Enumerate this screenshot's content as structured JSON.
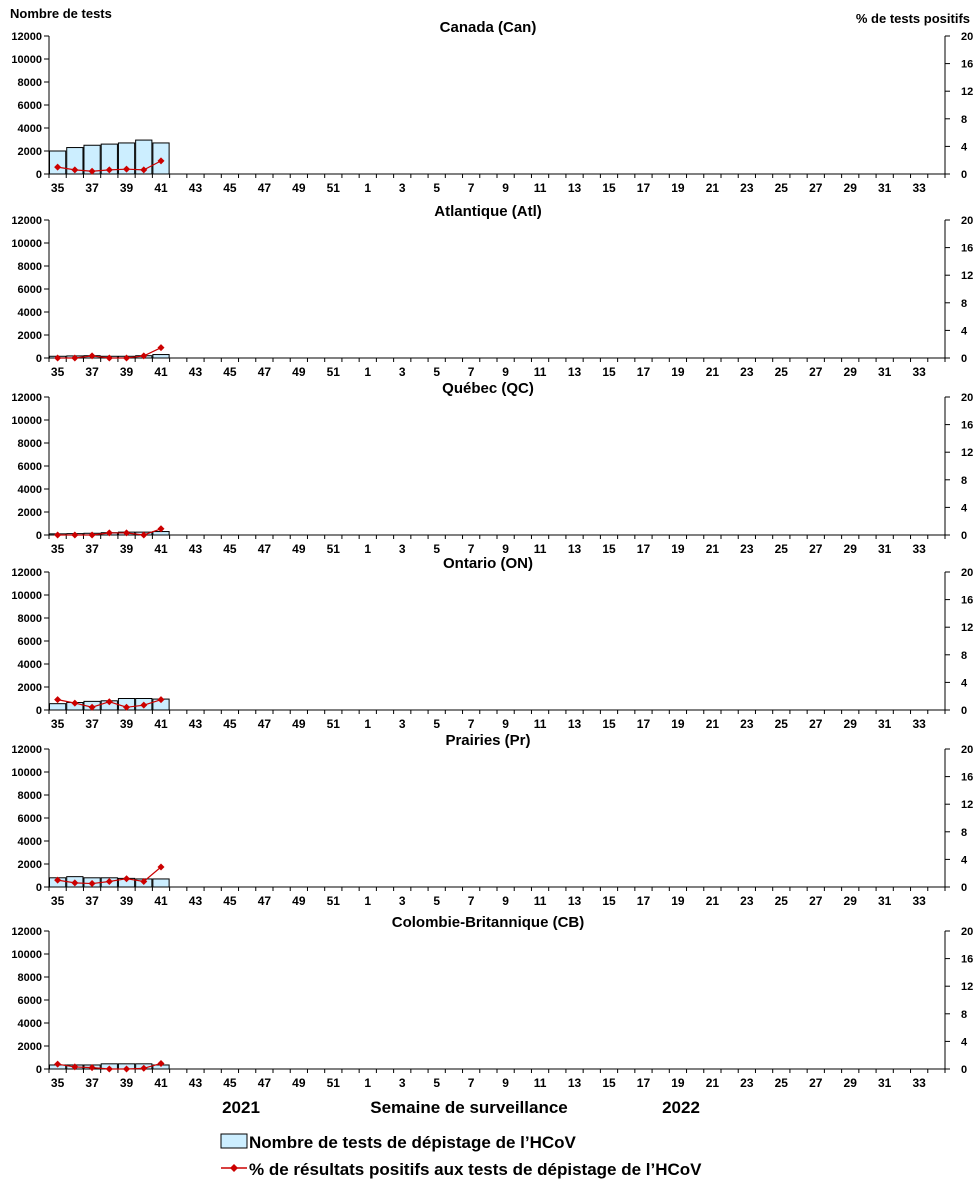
{
  "labels": {
    "left_axis_title": "Nombre de tests",
    "right_axis_title": "% de tests positifs",
    "xlabel": "Semaine de surveillance",
    "year_left": "2021",
    "year_right": "2022"
  },
  "legend": {
    "bar_label": "Nombre de tests de dépistage de l’HCoV",
    "line_label": "% de résultats positifs aux tests de dépistage de l’HCoV"
  },
  "colors": {
    "bar_fill": "#cceeff",
    "bar_stroke": "#000000",
    "line": "#cc0000",
    "axis": "#000000"
  },
  "chart_data": [
    {
      "type": "bar+line",
      "title": "Canada (Can)",
      "weeks": [
        "35",
        "36",
        "37",
        "38",
        "39",
        "40",
        "41",
        "42",
        "43",
        "44",
        "45",
        "46",
        "47",
        "48",
        "49",
        "50",
        "51",
        "52",
        "1",
        "2",
        "3",
        "4",
        "5",
        "6",
        "7",
        "8",
        "9",
        "10",
        "11",
        "12",
        "13",
        "14",
        "15",
        "16",
        "17",
        "18",
        "19",
        "20",
        "21",
        "22",
        "23",
        "24",
        "25",
        "26",
        "27",
        "28",
        "29",
        "30",
        "31",
        "32",
        "33",
        "34"
      ],
      "tick_labels": [
        "35",
        "37",
        "39",
        "41",
        "43",
        "45",
        "47",
        "49",
        "51",
        "1",
        "3",
        "5",
        "7",
        "9",
        "11",
        "13",
        "15",
        "17",
        "19",
        "21",
        "23",
        "25",
        "27",
        "29",
        "31",
        "33"
      ],
      "tests": [
        2000,
        2300,
        2500,
        2600,
        2700,
        2950,
        2700
      ],
      "pct_positive": [
        1.0,
        0.6,
        0.4,
        0.6,
        0.7,
        0.6,
        1.9
      ],
      "ylim_left": [
        0,
        12000
      ],
      "yticks_left": [
        0,
        2000,
        4000,
        6000,
        8000,
        10000,
        12000
      ],
      "ylim_right": [
        0,
        20
      ],
      "yticks_right": [
        0,
        4,
        8,
        12,
        16,
        20
      ]
    },
    {
      "type": "bar+line",
      "title": "Atlantique (Atl)",
      "weeks": [
        "35",
        "36",
        "37",
        "38",
        "39",
        "40",
        "41",
        "42",
        "43",
        "44",
        "45",
        "46",
        "47",
        "48",
        "49",
        "50",
        "51",
        "52",
        "1",
        "2",
        "3",
        "4",
        "5",
        "6",
        "7",
        "8",
        "9",
        "10",
        "11",
        "12",
        "13",
        "14",
        "15",
        "16",
        "17",
        "18",
        "19",
        "20",
        "21",
        "22",
        "23",
        "24",
        "25",
        "26",
        "27",
        "28",
        "29",
        "30",
        "31",
        "32",
        "33",
        "34"
      ],
      "tick_labels": [
        "35",
        "37",
        "39",
        "41",
        "43",
        "45",
        "47",
        "49",
        "51",
        "1",
        "3",
        "5",
        "7",
        "9",
        "11",
        "13",
        "15",
        "17",
        "19",
        "21",
        "23",
        "25",
        "27",
        "29",
        "31",
        "33"
      ],
      "tests": [
        150,
        180,
        200,
        150,
        150,
        200,
        300
      ],
      "pct_positive": [
        0.0,
        0.0,
        0.3,
        0.0,
        0.0,
        0.3,
        1.5
      ],
      "ylim_left": [
        0,
        12000
      ],
      "yticks_left": [
        0,
        2000,
        4000,
        6000,
        8000,
        10000,
        12000
      ],
      "ylim_right": [
        0,
        20
      ],
      "yticks_right": [
        0,
        4,
        8,
        12,
        16,
        20
      ]
    },
    {
      "type": "bar+line",
      "title": "Québec (QC)",
      "weeks": [
        "35",
        "36",
        "37",
        "38",
        "39",
        "40",
        "41",
        "42",
        "43",
        "44",
        "45",
        "46",
        "47",
        "48",
        "49",
        "50",
        "51",
        "52",
        "1",
        "2",
        "3",
        "4",
        "5",
        "6",
        "7",
        "8",
        "9",
        "10",
        "11",
        "12",
        "13",
        "14",
        "15",
        "16",
        "17",
        "18",
        "19",
        "20",
        "21",
        "22",
        "23",
        "24",
        "25",
        "26",
        "27",
        "28",
        "29",
        "30",
        "31",
        "32",
        "33",
        "34"
      ],
      "tick_labels": [
        "35",
        "37",
        "39",
        "41",
        "43",
        "45",
        "47",
        "49",
        "51",
        "1",
        "3",
        "5",
        "7",
        "9",
        "11",
        "13",
        "15",
        "17",
        "19",
        "21",
        "23",
        "25",
        "27",
        "29",
        "31",
        "33"
      ],
      "tests": [
        100,
        120,
        150,
        200,
        250,
        250,
        300
      ],
      "pct_positive": [
        0.0,
        0.0,
        0.0,
        0.3,
        0.3,
        0.0,
        0.9
      ],
      "ylim_left": [
        0,
        12000
      ],
      "yticks_left": [
        0,
        2000,
        4000,
        6000,
        8000,
        10000,
        12000
      ],
      "ylim_right": [
        0,
        20
      ],
      "yticks_right": [
        0,
        4,
        8,
        12,
        16,
        20
      ]
    },
    {
      "type": "bar+line",
      "title": "Ontario (ON)",
      "weeks": [
        "35",
        "36",
        "37",
        "38",
        "39",
        "40",
        "41",
        "42",
        "43",
        "44",
        "45",
        "46",
        "47",
        "48",
        "49",
        "50",
        "51",
        "52",
        "1",
        "2",
        "3",
        "4",
        "5",
        "6",
        "7",
        "8",
        "9",
        "10",
        "11",
        "12",
        "13",
        "14",
        "15",
        "16",
        "17",
        "18",
        "19",
        "20",
        "21",
        "22",
        "23",
        "24",
        "25",
        "26",
        "27",
        "28",
        "29",
        "30",
        "31",
        "32",
        "33",
        "34"
      ],
      "tick_labels": [
        "35",
        "37",
        "39",
        "41",
        "43",
        "45",
        "47",
        "49",
        "51",
        "1",
        "3",
        "5",
        "7",
        "9",
        "11",
        "13",
        "15",
        "17",
        "19",
        "21",
        "23",
        "25",
        "27",
        "29",
        "31",
        "33"
      ],
      "tests": [
        550,
        650,
        750,
        800,
        1000,
        1000,
        950
      ],
      "pct_positive": [
        1.5,
        1.0,
        0.4,
        1.2,
        0.4,
        0.7,
        1.5
      ],
      "ylim_left": [
        0,
        12000
      ],
      "yticks_left": [
        0,
        2000,
        4000,
        6000,
        8000,
        10000,
        12000
      ],
      "ylim_right": [
        0,
        20
      ],
      "yticks_right": [
        0,
        4,
        8,
        12,
        16,
        20
      ]
    },
    {
      "type": "bar+line",
      "title": "Prairies (Pr)",
      "weeks": [
        "35",
        "36",
        "37",
        "38",
        "39",
        "40",
        "41",
        "42",
        "43",
        "44",
        "45",
        "46",
        "47",
        "48",
        "49",
        "50",
        "51",
        "52",
        "1",
        "2",
        "3",
        "4",
        "5",
        "6",
        "7",
        "8",
        "9",
        "10",
        "11",
        "12",
        "13",
        "14",
        "15",
        "16",
        "17",
        "18",
        "19",
        "20",
        "21",
        "22",
        "23",
        "24",
        "25",
        "26",
        "27",
        "28",
        "29",
        "30",
        "31",
        "32",
        "33",
        "34"
      ],
      "tick_labels": [
        "35",
        "37",
        "39",
        "41",
        "43",
        "45",
        "47",
        "49",
        "51",
        "1",
        "3",
        "5",
        "7",
        "9",
        "11",
        "13",
        "15",
        "17",
        "19",
        "21",
        "23",
        "25",
        "27",
        "29",
        "31",
        "33"
      ],
      "tests": [
        800,
        900,
        800,
        800,
        750,
        700,
        700
      ],
      "pct_positive": [
        1.0,
        0.6,
        0.5,
        0.8,
        1.2,
        0.8,
        2.9
      ],
      "ylim_left": [
        0,
        12000
      ],
      "yticks_left": [
        0,
        2000,
        4000,
        6000,
        8000,
        10000,
        12000
      ],
      "ylim_right": [
        0,
        20
      ],
      "yticks_right": [
        0,
        4,
        8,
        12,
        16,
        20
      ]
    },
    {
      "type": "bar+line",
      "title": "Colombie-Britannique (CB)",
      "weeks": [
        "35",
        "36",
        "37",
        "38",
        "39",
        "40",
        "41",
        "42",
        "43",
        "44",
        "45",
        "46",
        "47",
        "48",
        "49",
        "50",
        "51",
        "52",
        "1",
        "2",
        "3",
        "4",
        "5",
        "6",
        "7",
        "8",
        "9",
        "10",
        "11",
        "12",
        "13",
        "14",
        "15",
        "16",
        "17",
        "18",
        "19",
        "20",
        "21",
        "22",
        "23",
        "24",
        "25",
        "26",
        "27",
        "28",
        "29",
        "30",
        "31",
        "32",
        "33",
        "34"
      ],
      "tick_labels": [
        "35",
        "37",
        "39",
        "41",
        "43",
        "45",
        "47",
        "49",
        "51",
        "1",
        "3",
        "5",
        "7",
        "9",
        "11",
        "13",
        "15",
        "17",
        "19",
        "21",
        "23",
        "25",
        "27",
        "29",
        "31",
        "33"
      ],
      "tests": [
        350,
        350,
        350,
        450,
        450,
        450,
        350
      ],
      "pct_positive": [
        0.7,
        0.3,
        0.2,
        0.0,
        0.0,
        0.1,
        0.8
      ],
      "ylim_left": [
        0,
        12000
      ],
      "yticks_left": [
        0,
        2000,
        4000,
        6000,
        8000,
        10000,
        12000
      ],
      "ylim_right": [
        0,
        20
      ],
      "yticks_right": [
        0,
        4,
        8,
        12,
        16,
        20
      ]
    }
  ]
}
